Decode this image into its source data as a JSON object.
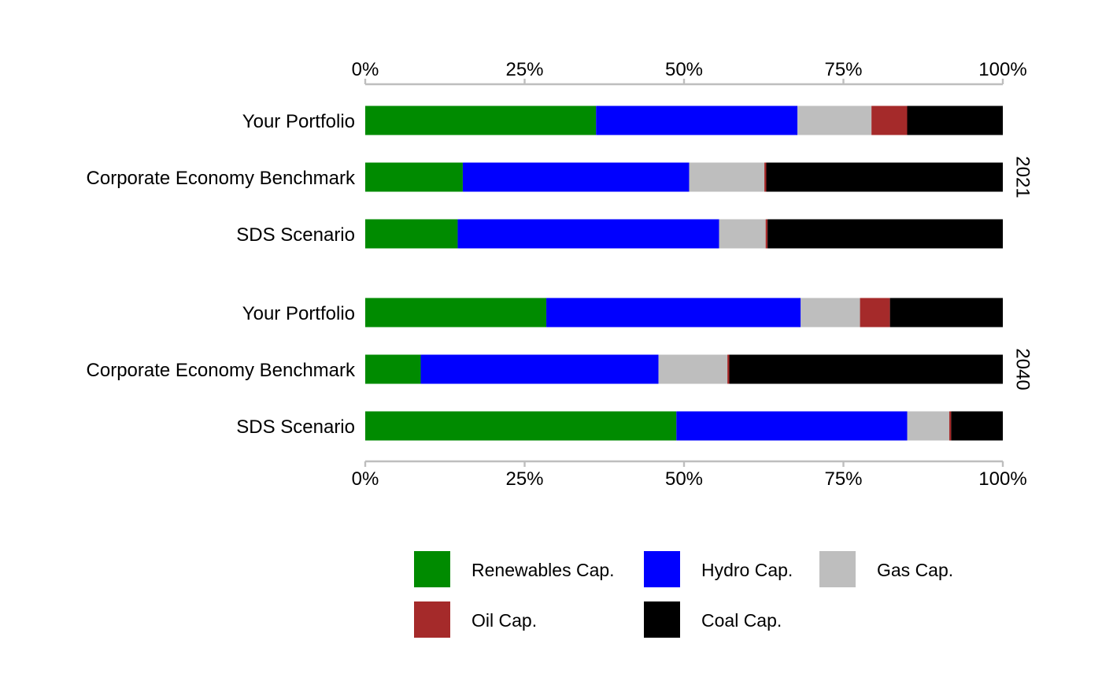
{
  "chart_data": {
    "type": "bar",
    "orientation": "horizontal",
    "stacked": true,
    "normalized": true,
    "xlim": [
      0,
      100
    ],
    "ticks": [
      "0%",
      "25%",
      "50%",
      "75%",
      "100%"
    ],
    "tick_values": [
      0,
      25,
      50,
      75,
      100
    ],
    "legend_position": "bottom",
    "series": [
      {
        "name": "Renewables Cap.",
        "color": "#008B00"
      },
      {
        "name": "Hydro Cap.",
        "color": "#0000FF"
      },
      {
        "name": "Gas Cap.",
        "color": "#BEBEBE"
      },
      {
        "name": "Oil Cap.",
        "color": "#A52A2A"
      },
      {
        "name": "Coal Cap.",
        "color": "#000000"
      }
    ],
    "panels": [
      {
        "label": "2021",
        "rows": [
          {
            "label": "Your Portfolio",
            "values": [
              36.2,
              31.6,
              11.6,
              5.6,
              15.0
            ]
          },
          {
            "label": "Corporate Economy Benchmark",
            "values": [
              15.3,
              35.5,
              11.8,
              0.3,
              37.1
            ]
          },
          {
            "label": "SDS Scenario",
            "values": [
              14.5,
              41.0,
              7.3,
              0.3,
              36.9
            ]
          }
        ]
      },
      {
        "label": "2040",
        "rows": [
          {
            "label": "Your Portfolio",
            "values": [
              28.4,
              39.9,
              9.3,
              4.7,
              17.7
            ]
          },
          {
            "label": "Corporate Economy Benchmark",
            "values": [
              8.7,
              37.3,
              10.8,
              0.3,
              42.9
            ]
          },
          {
            "label": "SDS Scenario",
            "values": [
              48.8,
              36.2,
              6.6,
              0.3,
              8.1
            ]
          }
        ]
      }
    ]
  }
}
